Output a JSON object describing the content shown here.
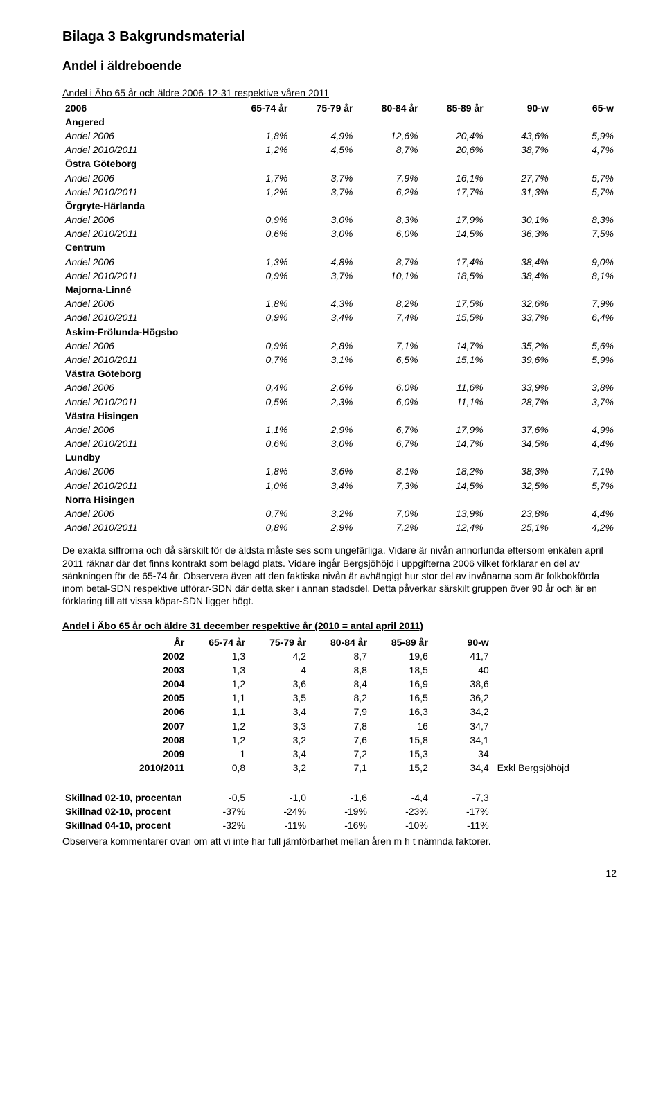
{
  "title_h1": "Bilaga 3 Bakgrundsmaterial",
  "title_h2": "Andel i äldreboende",
  "t1": {
    "caption": "Andel i Äbo 65 år och äldre 2006-12-31 respektive våren 2011",
    "head": [
      "2006",
      "65-74 år",
      "75-79 år",
      "80-84 år",
      "85-89 år",
      "90-w",
      "65-w"
    ],
    "sections": [
      {
        "name": "Angered",
        "rows": [
          {
            "lbl": "Andel 2006",
            "v": [
              "1,8%",
              "4,9%",
              "12,6%",
              "20,4%",
              "43,6%",
              "5,9%"
            ]
          },
          {
            "lbl": "Andel 2010/2011",
            "v": [
              "1,2%",
              "4,5%",
              "8,7%",
              "20,6%",
              "38,7%",
              "4,7%"
            ]
          }
        ]
      },
      {
        "name": "Östra Göteborg",
        "rows": [
          {
            "lbl": "Andel 2006",
            "v": [
              "1,7%",
              "3,7%",
              "7,9%",
              "16,1%",
              "27,7%",
              "5,7%"
            ]
          },
          {
            "lbl": "Andel 2010/2011",
            "v": [
              "1,2%",
              "3,7%",
              "6,2%",
              "17,7%",
              "31,3%",
              "5,7%"
            ]
          }
        ]
      },
      {
        "name": "Örgryte-Härlanda",
        "rows": [
          {
            "lbl": "Andel 2006",
            "v": [
              "0,9%",
              "3,0%",
              "8,3%",
              "17,9%",
              "30,1%",
              "8,3%"
            ]
          },
          {
            "lbl": "Andel 2010/2011",
            "v": [
              "0,6%",
              "3,0%",
              "6,0%",
              "14,5%",
              "36,3%",
              "7,5%"
            ]
          }
        ]
      },
      {
        "name": "Centrum",
        "rows": [
          {
            "lbl": "Andel 2006",
            "v": [
              "1,3%",
              "4,8%",
              "8,7%",
              "17,4%",
              "38,4%",
              "9,0%"
            ]
          },
          {
            "lbl": "Andel 2010/2011",
            "v": [
              "0,9%",
              "3,7%",
              "10,1%",
              "18,5%",
              "38,4%",
              "8,1%"
            ]
          }
        ]
      },
      {
        "name": "Majorna-Linné",
        "rows": [
          {
            "lbl": "Andel 2006",
            "v": [
              "1,8%",
              "4,3%",
              "8,2%",
              "17,5%",
              "32,6%",
              "7,9%"
            ]
          },
          {
            "lbl": "Andel 2010/2011",
            "v": [
              "0,9%",
              "3,4%",
              "7,4%",
              "15,5%",
              "33,7%",
              "6,4%"
            ]
          }
        ]
      },
      {
        "name": "Askim-Frölunda-Högsbo",
        "rows": [
          {
            "lbl": "Andel 2006",
            "v": [
              "0,9%",
              "2,8%",
              "7,1%",
              "14,7%",
              "35,2%",
              "5,6%"
            ]
          },
          {
            "lbl": "Andel 2010/2011",
            "v": [
              "0,7%",
              "3,1%",
              "6,5%",
              "15,1%",
              "39,6%",
              "5,9%"
            ]
          }
        ]
      },
      {
        "name": "Västra Göteborg",
        "rows": [
          {
            "lbl": "Andel 2006",
            "v": [
              "0,4%",
              "2,6%",
              "6,0%",
              "11,6%",
              "33,9%",
              "3,8%"
            ]
          },
          {
            "lbl": "Andel 2010/2011",
            "v": [
              "0,5%",
              "2,3%",
              "6,0%",
              "11,1%",
              "28,7%",
              "3,7%"
            ]
          }
        ]
      },
      {
        "name": "Västra Hisingen",
        "rows": [
          {
            "lbl": "Andel 2006",
            "v": [
              "1,1%",
              "2,9%",
              "6,7%",
              "17,9%",
              "37,6%",
              "4,9%"
            ]
          },
          {
            "lbl": "Andel 2010/2011",
            "v": [
              "0,6%",
              "3,0%",
              "6,7%",
              "14,7%",
              "34,5%",
              "4,4%"
            ]
          }
        ]
      },
      {
        "name": "Lundby",
        "rows": [
          {
            "lbl": "Andel 2006",
            "v": [
              "1,8%",
              "3,6%",
              "8,1%",
              "18,2%",
              "38,3%",
              "7,1%"
            ]
          },
          {
            "lbl": "Andel 2010/2011",
            "v": [
              "1,0%",
              "3,4%",
              "7,3%",
              "14,5%",
              "32,5%",
              "5,7%"
            ]
          }
        ]
      },
      {
        "name": "Norra Hisingen",
        "rows": [
          {
            "lbl": "Andel 2006",
            "v": [
              "0,7%",
              "3,2%",
              "7,0%",
              "13,9%",
              "23,8%",
              "4,4%"
            ]
          },
          {
            "lbl": "Andel 2010/2011",
            "v": [
              "0,8%",
              "2,9%",
              "7,2%",
              "12,4%",
              "25,1%",
              "4,2%"
            ]
          }
        ]
      }
    ]
  },
  "para1": "De exakta siffrorna och då särskilt för de äldsta måste ses som ungefärliga. Vidare är nivån annorlunda eftersom enkäten april 2011 räknar där det finns kontrakt som belagd plats. Vidare ingår Bergsjöhöjd i uppgifterna 2006 vilket förklarar en del av sänkningen för de 65-74 år. Observera även att den faktiska nivån är avhängigt hur stor del av invånarna som är folkbokförda inom betal-SDN respektive utförar-SDN där detta sker i annan stadsdel. Detta påverkar särskilt gruppen över 90 år och är en förklaring till att vissa köpar-SDN ligger högt.",
  "t2": {
    "caption": "Andel i Äbo 65 år och äldre 31 december respektive år (2010 = antal april 2011)",
    "head": [
      "År",
      "65-74 år",
      "75-79 år",
      "80-84 år",
      "85-89 år",
      "90-w",
      ""
    ],
    "rows": [
      {
        "y": "2002",
        "v": [
          "1,3",
          "4,2",
          "8,7",
          "19,6",
          "41,7"
        ],
        "note": ""
      },
      {
        "y": "2003",
        "v": [
          "1,3",
          "4",
          "8,8",
          "18,5",
          "40"
        ],
        "note": ""
      },
      {
        "y": "2004",
        "v": [
          "1,2",
          "3,6",
          "8,4",
          "16,9",
          "38,6"
        ],
        "note": ""
      },
      {
        "y": "2005",
        "v": [
          "1,1",
          "3,5",
          "8,2",
          "16,5",
          "36,2"
        ],
        "note": ""
      },
      {
        "y": "2006",
        "v": [
          "1,1",
          "3,4",
          "7,9",
          "16,3",
          "34,2"
        ],
        "note": ""
      },
      {
        "y": "2007",
        "v": [
          "1,2",
          "3,3",
          "7,8",
          "16",
          "34,7"
        ],
        "note": ""
      },
      {
        "y": "2008",
        "v": [
          "1,2",
          "3,2",
          "7,6",
          "15,8",
          "34,1"
        ],
        "note": ""
      },
      {
        "y": "2009",
        "v": [
          "1",
          "3,4",
          "7,2",
          "15,3",
          "34"
        ],
        "note": ""
      },
      {
        "y": "2010/2011",
        "v": [
          "0,8",
          "3,2",
          "7,1",
          "15,2",
          "34,4"
        ],
        "note": "Exkl Bergsjöhöjd"
      }
    ],
    "diffs": [
      {
        "lbl": "Skillnad 02-10, procentan",
        "v": [
          "-0,5",
          "-1,0",
          "-1,6",
          "-4,4",
          "-7,3"
        ]
      },
      {
        "lbl": "Skillnad 02-10, procent",
        "v": [
          "-37%",
          "-24%",
          "-19%",
          "-23%",
          "-17%"
        ]
      },
      {
        "lbl": "Skillnad 04-10, procent",
        "v": [
          "-32%",
          "-11%",
          "-16%",
          "-10%",
          "-11%"
        ]
      }
    ]
  },
  "para2": "Observera kommentarer ovan om att vi inte har full jämförbarhet mellan åren m h t nämnda faktorer.",
  "pagenum": "12"
}
